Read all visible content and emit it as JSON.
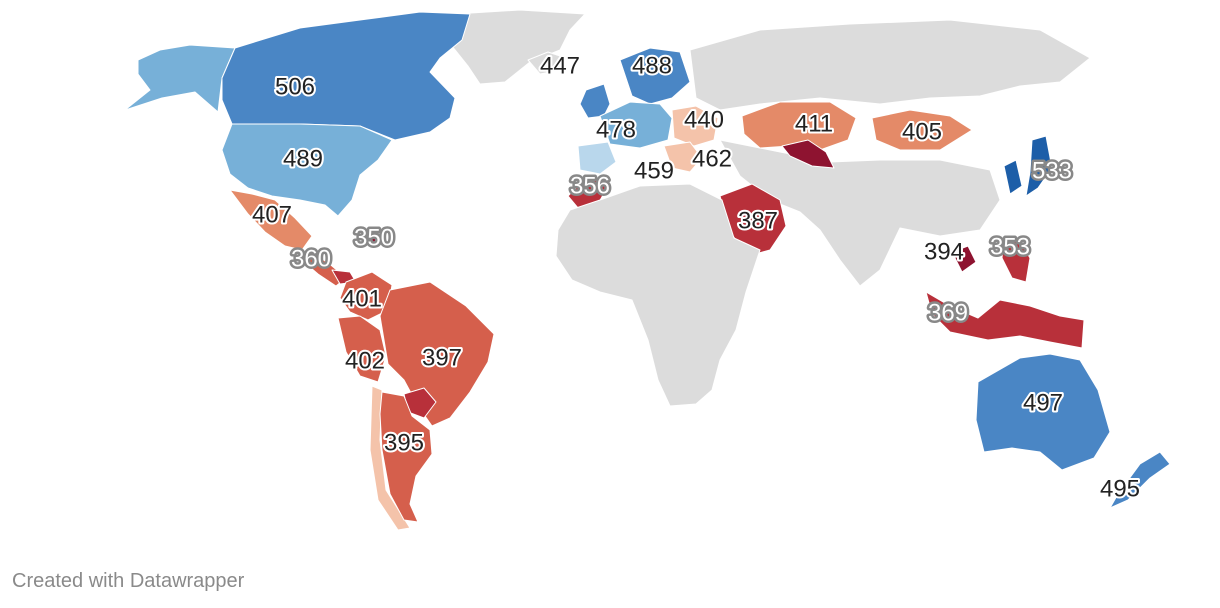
{
  "credit_text": "Created with Datawrapper",
  "colors": {
    "no_data": "#dcdcdc",
    "very_high": "#1d5ea8",
    "high": "#4a86c5",
    "mid_high": "#77b0d8",
    "light_blue": "#b9d7ec",
    "light_red": "#f4c3aa",
    "mid_low": "#e48a68",
    "low": "#d55f4c",
    "very_low": "#b8303a",
    "lowest": "#8e1330"
  },
  "regions": [
    {
      "name": "greenland",
      "color": "no_data"
    },
    {
      "name": "canada",
      "color": "high",
      "value": "506"
    },
    {
      "name": "alaska",
      "color": "mid_high"
    },
    {
      "name": "united-states",
      "color": "mid_high",
      "value": "489"
    },
    {
      "name": "mexico",
      "color": "mid_low",
      "value": "407"
    },
    {
      "name": "central-america",
      "color": "low"
    },
    {
      "name": "dominican-republic",
      "color": "lowest",
      "value": "350"
    },
    {
      "name": "panama",
      "color": "very_low",
      "value": "360"
    },
    {
      "name": "colombia",
      "color": "low",
      "value": "401"
    },
    {
      "name": "peru",
      "color": "low",
      "value": "402"
    },
    {
      "name": "brazil",
      "color": "low",
      "value": "397"
    },
    {
      "name": "argentina",
      "color": "low",
      "value": "395"
    },
    {
      "name": "paraguay",
      "color": "very_low"
    },
    {
      "name": "chile",
      "color": "light_red"
    },
    {
      "name": "iceland",
      "color": "no_data",
      "value": "447"
    },
    {
      "name": "united-kingdom",
      "color": "high"
    },
    {
      "name": "scandinavia",
      "color": "high",
      "value": "488"
    },
    {
      "name": "western-europe",
      "color": "mid_high",
      "value": "478"
    },
    {
      "name": "iberia",
      "color": "light_blue",
      "value": "459"
    },
    {
      "name": "eastern-europe",
      "color": "light_red",
      "value": "440"
    },
    {
      "name": "balkans",
      "color": "light_red",
      "value": "462"
    },
    {
      "name": "morocco",
      "color": "very_low",
      "value": "356"
    },
    {
      "name": "saudi-arabia",
      "color": "very_low",
      "value": "387"
    },
    {
      "name": "kazakhstan",
      "color": "mid_low",
      "value": "411"
    },
    {
      "name": "uzbekistan",
      "color": "lowest"
    },
    {
      "name": "mongolia",
      "color": "mid_low",
      "value": "405"
    },
    {
      "name": "japan",
      "color": "very_high",
      "value": "533"
    },
    {
      "name": "korea",
      "color": "very_high"
    },
    {
      "name": "cambodia",
      "color": "lowest",
      "value": "394"
    },
    {
      "name": "philippines",
      "color": "very_low",
      "value": "353"
    },
    {
      "name": "indonesia",
      "color": "very_low",
      "value": "369"
    },
    {
      "name": "australia",
      "color": "high",
      "value": "497"
    },
    {
      "name": "new-zealand",
      "color": "high",
      "value": "495"
    },
    {
      "name": "russia",
      "color": "no_data"
    },
    {
      "name": "africa",
      "color": "no_data"
    },
    {
      "name": "asia",
      "color": "no_data"
    }
  ]
}
